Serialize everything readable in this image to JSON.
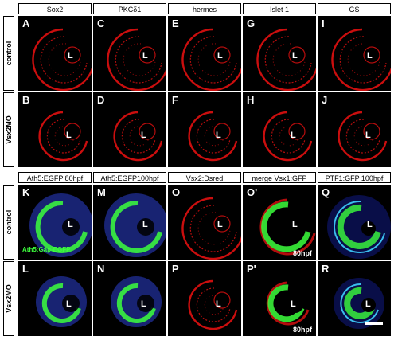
{
  "top": {
    "columns": [
      "Sox2",
      "PKCδ1",
      "hermes",
      "Islet 1",
      "GS"
    ],
    "rows": [
      "control",
      "Vsx2MO"
    ],
    "panels": [
      {
        "letter": "A",
        "lens": "L"
      },
      {
        "letter": "C",
        "lens": "L"
      },
      {
        "letter": "E",
        "lens": "L"
      },
      {
        "letter": "G",
        "lens": "L"
      },
      {
        "letter": "I",
        "lens": "L"
      },
      {
        "letter": "B",
        "lens": "L"
      },
      {
        "letter": "D",
        "lens": "L"
      },
      {
        "letter": "F",
        "lens": "L"
      },
      {
        "letter": "H",
        "lens": "L"
      },
      {
        "letter": "J",
        "lens": "L"
      }
    ]
  },
  "bottom": {
    "columns": [
      "Ath5:EGFP 80hpf",
      "Ath5:EGFP100hpf",
      "Vsx2:Dsred",
      "merge Vsx1:GFP",
      "PTF1:GFP 100hpf"
    ],
    "rows": [
      "control",
      "Vsx2MO"
    ],
    "panels": [
      {
        "letter": "K",
        "lens": "L",
        "inset": "Ath5:Gap-EGFP"
      },
      {
        "letter": "M",
        "lens": "L"
      },
      {
        "letter": "O",
        "lens": "L"
      },
      {
        "letter": "O'",
        "lens": "L",
        "note": "80hpf"
      },
      {
        "letter": "Q",
        "lens": "L"
      },
      {
        "letter": "L",
        "lens": "L"
      },
      {
        "letter": "N",
        "lens": "L"
      },
      {
        "letter": "P",
        "lens": "L"
      },
      {
        "letter": "P'",
        "lens": "L",
        "note": "80hpf"
      },
      {
        "letter": "R",
        "lens": "L"
      }
    ]
  },
  "colors": {
    "red": "#e01010",
    "green": "#3cff3c",
    "blue": "#2b3fd0",
    "cyan": "#40d0ff"
  }
}
